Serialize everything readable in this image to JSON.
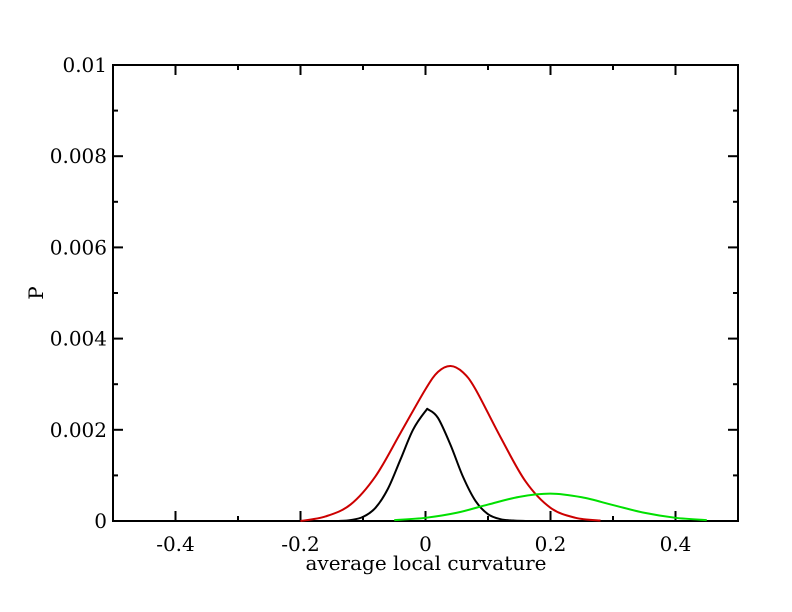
{
  "chart_data": {
    "type": "line",
    "title": "",
    "xlabel": "average local curvature",
    "ylabel": "P",
    "xlim": [
      -0.5,
      0.5
    ],
    "ylim": [
      0,
      0.01
    ],
    "x_ticks": [
      -0.4,
      -0.2,
      0,
      0.2,
      0.4
    ],
    "x_tick_labels": [
      "-0.4",
      "-0.2",
      "0",
      "0.2",
      "0.4"
    ],
    "y_ticks": [
      0,
      0.002,
      0.004,
      0.006,
      0.008,
      0.01
    ],
    "y_tick_labels": [
      "0",
      "0.002",
      "0.004",
      "0.006",
      "0.008",
      "0.01"
    ],
    "grid": false,
    "legend": "none",
    "series": [
      {
        "color": "#000000",
        "x": [
          -0.14,
          -0.12,
          -0.1,
          -0.08,
          -0.06,
          -0.04,
          -0.02,
          0.0,
          0.005,
          0.02,
          0.04,
          0.06,
          0.08,
          0.1,
          0.12,
          0.14,
          0.16
        ],
        "values": [
          0.0,
          2e-05,
          9e-05,
          0.00029,
          0.00071,
          0.00135,
          0.002,
          0.00241,
          0.00244,
          0.00226,
          0.00167,
          0.00097,
          0.00044,
          0.00015,
          4e-05,
          1e-05,
          0.0
        ]
      },
      {
        "color": "#cc0000",
        "x": [
          -0.2,
          -0.16,
          -0.12,
          -0.08,
          -0.04,
          0.0,
          0.02,
          0.04,
          0.06,
          0.08,
          0.12,
          0.16,
          0.2,
          0.24,
          0.28
        ],
        "values": [
          0.0,
          0.0001,
          0.00036,
          0.00098,
          0.00193,
          0.00289,
          0.00327,
          0.0034,
          0.00326,
          0.00289,
          0.00184,
          0.00087,
          0.00029,
          7e-05,
          1e-05
        ]
      },
      {
        "color": "#00e000",
        "x": [
          -0.05,
          0.0,
          0.05,
          0.1,
          0.15,
          0.2,
          0.25,
          0.3,
          0.35,
          0.4,
          0.45
        ],
        "values": [
          2e-05,
          7e-05,
          0.00018,
          0.00036,
          0.00053,
          0.0006,
          0.00052,
          0.00035,
          0.00018,
          7e-05,
          2e-05
        ]
      }
    ]
  }
}
